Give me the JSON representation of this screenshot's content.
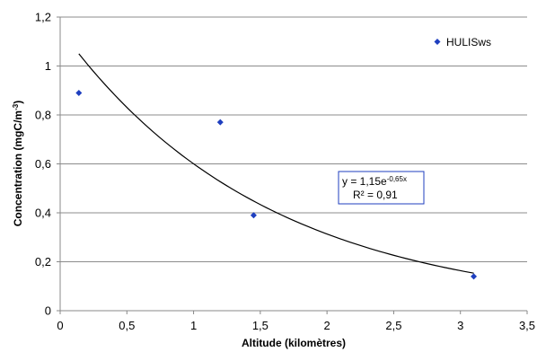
{
  "chart_data": {
    "type": "scatter",
    "title": "",
    "xlabel": "Altitude (kilomètres)",
    "ylabel_parts": [
      "Concentration (mgC/m",
      "-3",
      ")"
    ],
    "xlim": [
      0,
      3.5
    ],
    "ylim": [
      0,
      1.2
    ],
    "xticks": [
      "0",
      "0,5",
      "1",
      "1,5",
      "2",
      "2,5",
      "3",
      "3,5"
    ],
    "yticks": [
      "0",
      "0,2",
      "0,4",
      "0,6",
      "0,8",
      "1",
      "1,2"
    ],
    "grid": "horizontal",
    "legend": "top-right",
    "series": [
      {
        "name": "HULISws",
        "color": "#1F3FBF",
        "marker": "diamond",
        "points": [
          {
            "x": 0.14,
            "y": 0.89
          },
          {
            "x": 1.2,
            "y": 0.77
          },
          {
            "x": 1.45,
            "y": 0.39
          },
          {
            "x": 3.1,
            "y": 0.14
          }
        ]
      }
    ],
    "trendline": {
      "type": "exponential",
      "a": 1.15,
      "b": -0.65,
      "x_range": [
        0.14,
        3.1
      ],
      "color": "#000000",
      "equation_parts": [
        "y = 1,15e",
        "-0,65x"
      ],
      "r2_text": "R² = 0,91",
      "box_color": "#1F3FBF"
    }
  }
}
